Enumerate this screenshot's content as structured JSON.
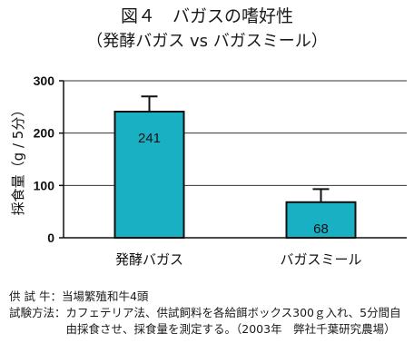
{
  "title": "図４　バガスの嗜好性",
  "subtitle": "（発酵バガス vs バガスミール）",
  "chart_data": {
    "type": "bar",
    "categories": [
      "発酵バガス",
      "バガスミール"
    ],
    "values": [
      241,
      68
    ],
    "error_upper": [
      270,
      93
    ],
    "data_labels": [
      "241",
      "68"
    ],
    "ylabel": "採食量（g / 5分）",
    "ylim": [
      0,
      300
    ],
    "yticks": [
      "0",
      "100",
      "200",
      "300"
    ],
    "grid": true,
    "bar_color": "#1ab0c4"
  },
  "notes": [
    {
      "key": "供 試 牛：",
      "value": "当場繁殖和牛4頭"
    },
    {
      "key": "試験方法：",
      "value": "カフェテリア法、供試飼料を各給餌ボックス300ｇ入れ、5分間自由採食させ、採食量を測定する。（2003年　弊社千葉研究農場）"
    }
  ]
}
